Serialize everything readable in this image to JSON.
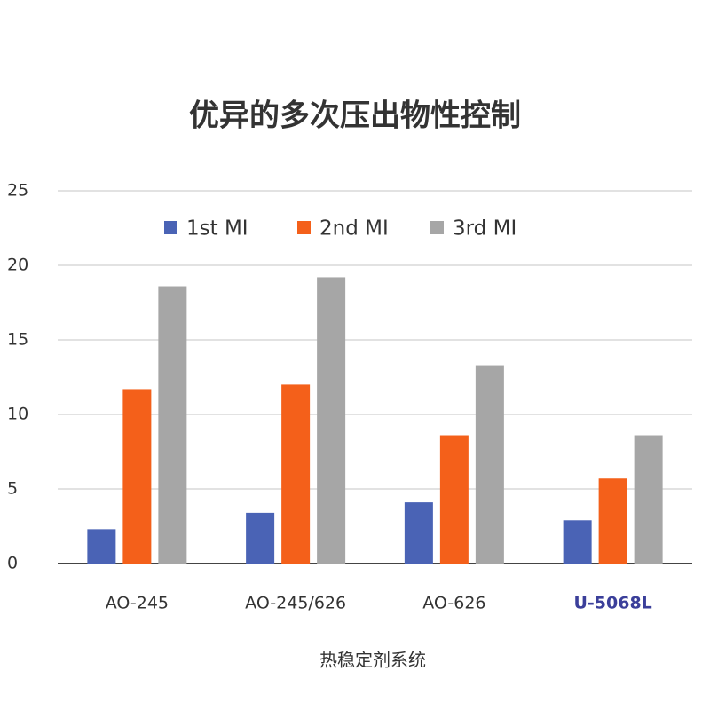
{
  "chart_data": {
    "type": "bar",
    "title": "优异的多次压出物性控制",
    "x_label": "热稳定剂系统",
    "categories": [
      "AO-245",
      "AO-245/626",
      "AO-626",
      "U-5068L"
    ],
    "category_label_colors": [
      "#333333",
      "#333333",
      "#333333",
      "#3b3f9a"
    ],
    "series": [
      {
        "name": "1st MI",
        "color": "#4a63b5",
        "values": [
          2.3,
          3.4,
          4.1,
          2.9
        ]
      },
      {
        "name": "2nd MI",
        "color": "#f4601a",
        "values": [
          11.7,
          12,
          8.6,
          5.7
        ]
      },
      {
        "name": "3rd MI",
        "color": "#a6a6a6",
        "values": [
          18.6,
          19.2,
          13.3,
          8.6
        ]
      }
    ],
    "ylim": [
      0,
      25
    ],
    "yticks": [
      0,
      5,
      10,
      15,
      20,
      25
    ],
    "grid": true,
    "legend": "top"
  }
}
